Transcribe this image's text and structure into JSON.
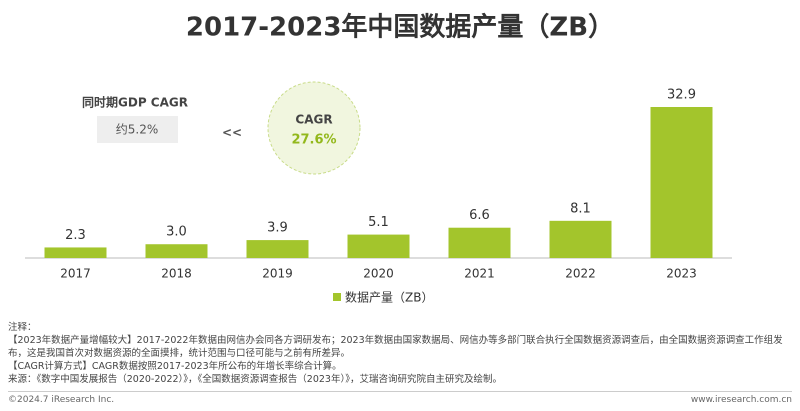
{
  "chart_data": {
    "type": "bar",
    "title": "2017-2023年中国数据产量（ZB）",
    "categories": [
      "2017",
      "2018",
      "2019",
      "2020",
      "2021",
      "2022",
      "2023"
    ],
    "series": [
      {
        "name": "数据产量（ZB）",
        "color": "#a3c52c",
        "values": [
          2.3,
          3.0,
          3.9,
          5.1,
          6.6,
          8.1,
          32.9
        ],
        "value_labels": [
          "2.3",
          "3.0",
          "3.9",
          "5.1",
          "6.6",
          "8.1",
          "32.9"
        ]
      }
    ],
    "annotations": [
      "同时期GDP CAGR",
      "约5.2%",
      "<<",
      "CAGR",
      "27.6%"
    ]
  },
  "notes": [
    "注释：",
    "【2023年数据产量增幅较大】2017-2022年数据由网信办会同各方调研发布；2023年数据由国家数据局、网信办等多部门联合执行全国数据资源调查后，由全国数据资源调查工作组发布，这是我国首次对数据资源的全面摸排，统计范围与口径可能与之前有所差异。",
    "【CAGR计算方式】CAGR数据按照2017-2023年所公布的年增长率综合计算。",
    "来源：《数字中国发展报告（2020-2022）》，《全国数据资源调查报告（2023年）》，艾瑞咨询研究院自主研究及绘制。"
  ],
  "footer": {
    "left": "©2024.7 iResearch Inc.",
    "right": "www.iresearch.com.cn"
  }
}
